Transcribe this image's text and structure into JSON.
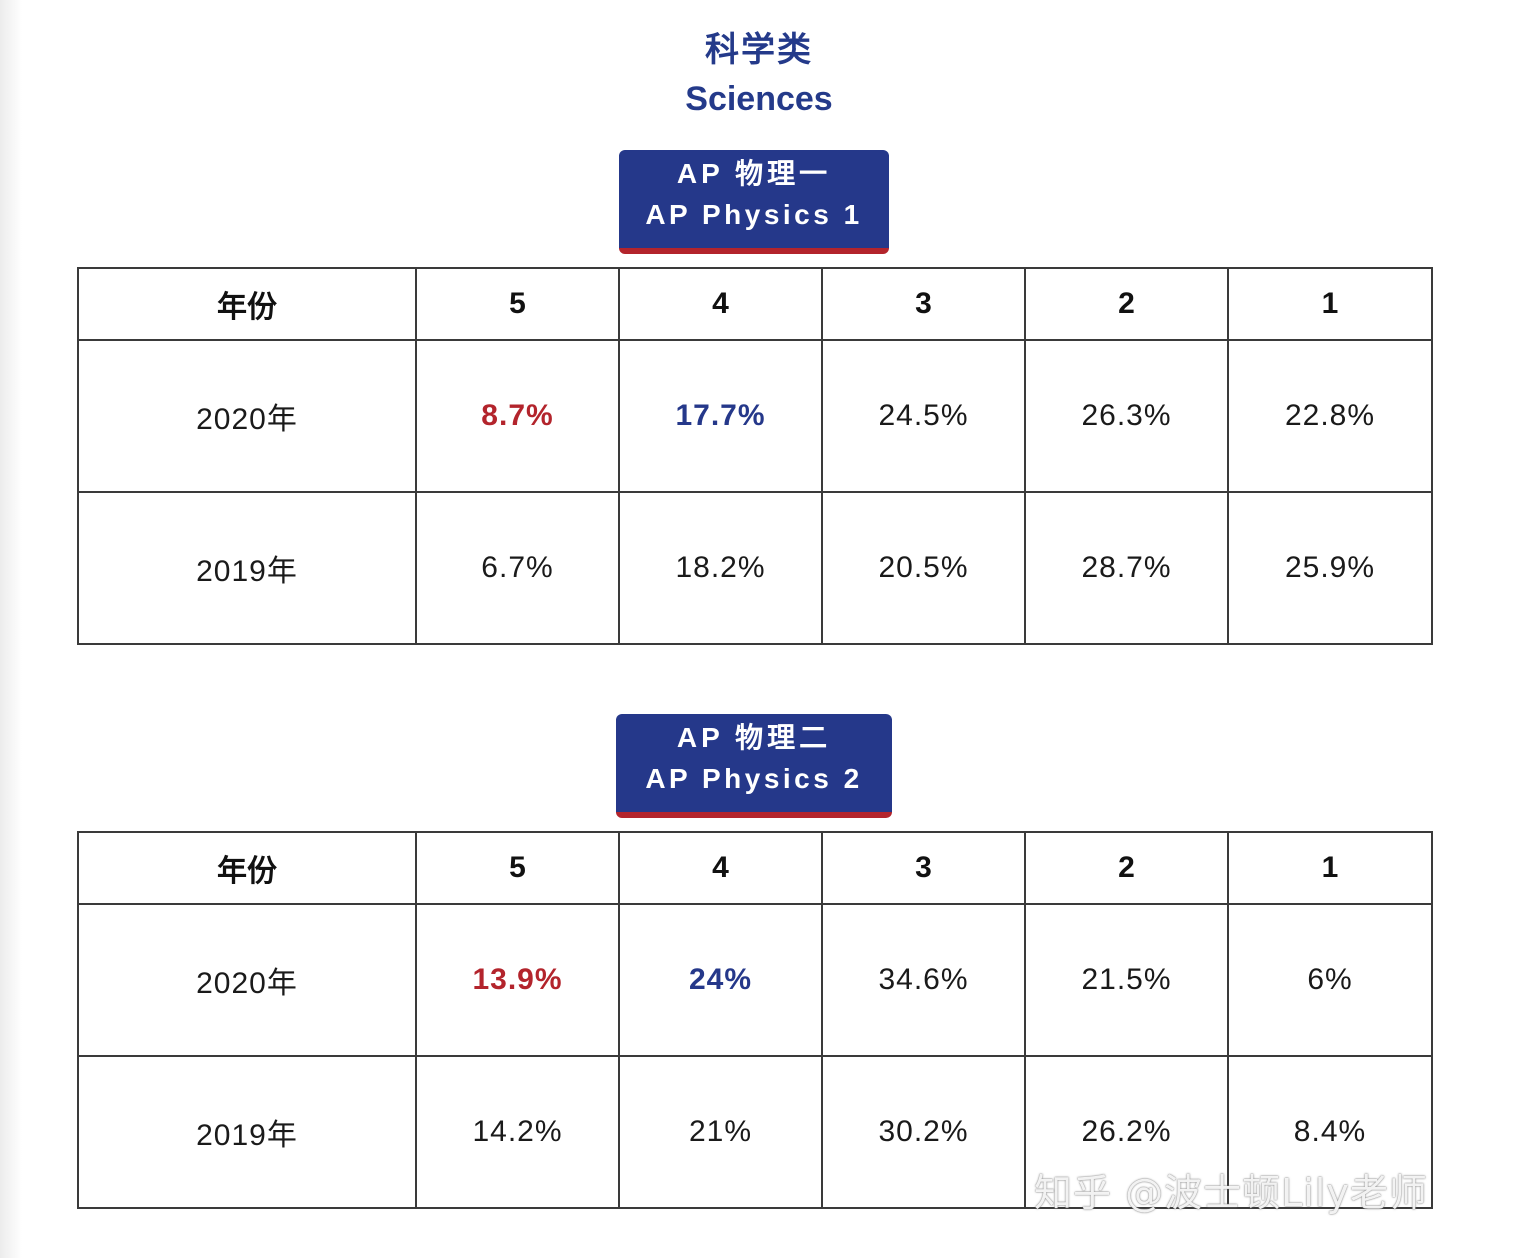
{
  "heading": {
    "cn": "科学类",
    "en": "Sciences"
  },
  "colors": {
    "navy": "#25388a",
    "red": "#b3242c"
  },
  "header_labels": [
    "年份",
    "5",
    "4",
    "3",
    "2",
    "1"
  ],
  "sections": [
    {
      "badge_cn": "AP 物理一",
      "badge_en": "AP Physics 1",
      "rows": [
        {
          "year": "2020年",
          "values": [
            "8.7%",
            "17.7%",
            "24.5%",
            "26.3%",
            "22.8%"
          ]
        },
        {
          "year": "2019年",
          "values": [
            "6.7%",
            "18.2%",
            "20.5%",
            "28.7%",
            "25.9%"
          ]
        }
      ]
    },
    {
      "badge_cn": "AP 物理二",
      "badge_en": "AP Physics 2",
      "rows": [
        {
          "year": "2020年",
          "values": [
            "13.9%",
            "24%",
            "34.6%",
            "21.5%",
            "6%"
          ]
        },
        {
          "year": "2019年",
          "values": [
            "14.2%",
            "21%",
            "30.2%",
            "26.2%",
            "8.4%"
          ]
        }
      ]
    }
  ],
  "watermark": "知乎 @波士顿Lily老师"
}
